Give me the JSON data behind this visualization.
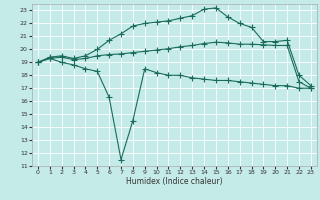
{
  "xlabel": "Humidex (Indice chaleur)",
  "background_color": "#c5ebe8",
  "grid_color": "#ffffff",
  "line_color": "#1a6b5a",
  "x_values": [
    0,
    1,
    2,
    3,
    4,
    5,
    6,
    7,
    8,
    9,
    10,
    11,
    12,
    13,
    14,
    15,
    16,
    17,
    18,
    19,
    20,
    21,
    22,
    23
  ],
  "curve_top": [
    19.0,
    19.4,
    19.5,
    19.3,
    19.5,
    20.0,
    20.7,
    21.2,
    21.8,
    22.0,
    22.1,
    22.2,
    22.4,
    22.6,
    23.1,
    23.2,
    22.5,
    22.0,
    21.7,
    20.6,
    20.6,
    20.7,
    18.0,
    17.2
  ],
  "curve_mid": [
    19.0,
    19.3,
    19.4,
    19.2,
    19.3,
    19.5,
    19.6,
    19.65,
    19.75,
    19.85,
    19.95,
    20.05,
    20.2,
    20.3,
    20.45,
    20.55,
    20.5,
    20.4,
    20.4,
    20.35,
    20.3,
    20.3,
    17.5,
    17.0
  ],
  "curve_bot": [
    19.0,
    19.3,
    19.0,
    18.8,
    18.5,
    18.3,
    16.3,
    11.5,
    14.5,
    18.5,
    18.2,
    18.0,
    18.0,
    17.8,
    17.7,
    17.6,
    17.6,
    17.5,
    17.4,
    17.3,
    17.2,
    17.2,
    17.0,
    17.0
  ],
  "ylim": [
    11,
    23.5
  ],
  "xlim": [
    -0.5,
    23.5
  ],
  "yticks": [
    11,
    12,
    13,
    14,
    15,
    16,
    17,
    18,
    19,
    20,
    21,
    22,
    23
  ],
  "xticks": [
    0,
    1,
    2,
    3,
    4,
    5,
    6,
    7,
    8,
    9,
    10,
    11,
    12,
    13,
    14,
    15,
    16,
    17,
    18,
    19,
    20,
    21,
    22,
    23
  ]
}
